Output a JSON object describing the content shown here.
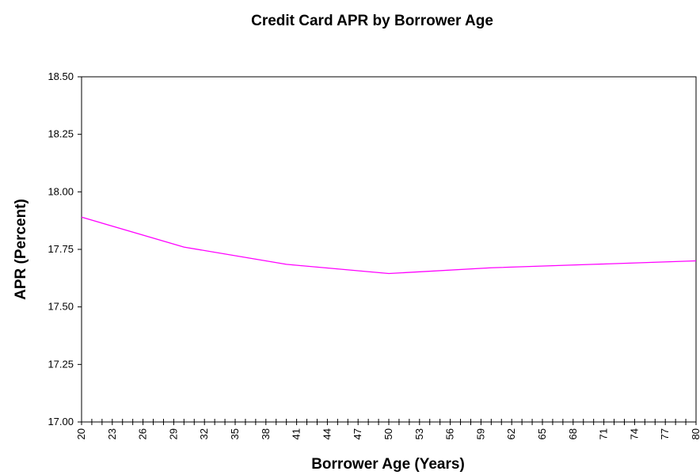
{
  "chart_data": {
    "type": "line",
    "title": "Credit Card APR by Borrower Age",
    "xlabel": "Borrower Age (Years)",
    "ylabel": "APR (Percent)",
    "xlim": [
      20,
      80
    ],
    "ylim": [
      17.0,
      18.5
    ],
    "x_tick_labels": [
      "20",
      "23",
      "26",
      "29",
      "32",
      "35",
      "38",
      "41",
      "44",
      "47",
      "50",
      "53",
      "56",
      "59",
      "62",
      "65",
      "68",
      "71",
      "74",
      "77",
      "80"
    ],
    "y_tick_labels": [
      "17.00",
      "17.25",
      "17.50",
      "17.75",
      "18.00",
      "18.25",
      "18.50"
    ],
    "grid": false,
    "legend": "none",
    "series": [
      {
        "color": "#ff00ff",
        "x": [
          20,
          30,
          40,
          50,
          60,
          70,
          80
        ],
        "y": [
          17.89,
          17.76,
          17.685,
          17.645,
          17.67,
          17.685,
          17.7
        ]
      }
    ]
  }
}
